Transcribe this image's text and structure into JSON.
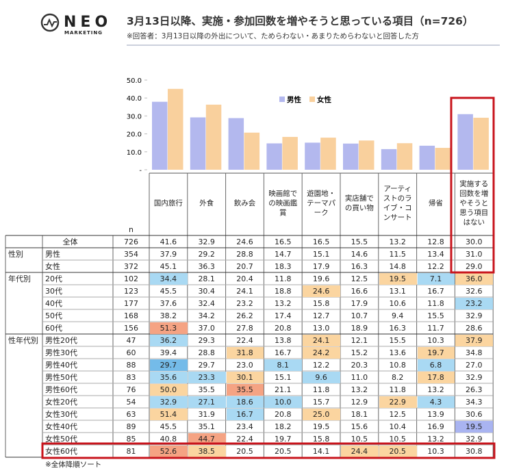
{
  "logo": {
    "name": "NEO",
    "sub": "MARKETING"
  },
  "header": {
    "title": "3月13日以降、実施・参加回数を増やそうと思っている項目（n=726）",
    "subtitle": "※回答者：3月13日以降の外出について、ためらわない・あまりためらわないと回答した方"
  },
  "chart_data": {
    "type": "bar",
    "categories": [
      "国内旅行",
      "外食",
      "飲み会",
      "映画館での映画鑑賞",
      "遊園地・テーマパーク",
      "実店舗での買い物",
      "アーティストのライブ・コンサート",
      "帰省",
      "実施する回数を増やそうと思う項目はない"
    ],
    "series": [
      {
        "name": "男性",
        "color": "#b3b8ee",
        "values": [
          37.9,
          29.2,
          28.8,
          14.7,
          15.1,
          14.6,
          11.5,
          13.4,
          31.0
        ]
      },
      {
        "name": "女性",
        "color": "#f9d09d",
        "values": [
          45.1,
          36.3,
          20.7,
          18.3,
          17.9,
          16.3,
          14.8,
          12.2,
          29.0
        ]
      }
    ],
    "ylim": [
      0,
      50
    ],
    "yticks": [
      {
        "value": 0,
        "label": "-"
      },
      {
        "value": 10,
        "label": "10.0"
      },
      {
        "value": 20,
        "label": "20.0"
      },
      {
        "value": 30,
        "label": "30.0"
      },
      {
        "value": 40,
        "label": "40.0"
      },
      {
        "value": 50,
        "label": "50.0"
      }
    ],
    "legend": "upper right"
  },
  "table": {
    "n_label": "n",
    "shades": {
      "low": "#a9d9f3",
      "deep": "#74bbe9",
      "violet": "#a9b4f1",
      "high": "#fbd5a0",
      "top": "#f5a383"
    },
    "rows": [
      {
        "label": "全体",
        "n": 726,
        "values": [
          "41.6",
          "32.9",
          "24.6",
          "16.5",
          "16.5",
          "15.5",
          "13.2",
          "12.8",
          "30.0"
        ]
      },
      {
        "group": "性別",
        "label": "男性",
        "n": 354,
        "values": [
          "37.9",
          "29.2",
          "28.8",
          "14.7",
          "15.1",
          "14.6",
          "11.5",
          "13.4",
          "31.0"
        ]
      },
      {
        "label": "女性",
        "n": 372,
        "values": [
          "45.1",
          "36.3",
          "20.7",
          "18.3",
          "17.9",
          "16.3",
          "14.8",
          "12.2",
          "29.0"
        ]
      },
      {
        "group": "年代別",
        "label": "20代",
        "n": 102,
        "values": [
          "34.4",
          "28.1",
          "20.4",
          "11.8",
          "19.6",
          "12.5",
          "19.5",
          "7.1",
          "36.0"
        ],
        "shade": [
          "low",
          null,
          null,
          null,
          null,
          null,
          "high",
          "low",
          "high"
        ]
      },
      {
        "label": "30代",
        "n": 123,
        "values": [
          "45.5",
          "30.4",
          "24.1",
          "18.8",
          "24.6",
          "16.6",
          "13.1",
          "16.7",
          "32.6"
        ],
        "shade": [
          null,
          null,
          null,
          null,
          "high",
          null,
          null,
          null,
          null
        ]
      },
      {
        "label": "40代",
        "n": 177,
        "values": [
          "37.6",
          "32.4",
          "23.2",
          "13.2",
          "15.8",
          "17.9",
          "10.6",
          "11.8",
          "23.2"
        ],
        "shade": [
          null,
          null,
          null,
          null,
          null,
          null,
          null,
          null,
          "low"
        ]
      },
      {
        "label": "50代",
        "n": 168,
        "values": [
          "38.2",
          "34.2",
          "26.2",
          "17.4",
          "12.7",
          "10.7",
          "9.4",
          "15.5",
          "32.9"
        ]
      },
      {
        "label": "60代",
        "n": 156,
        "values": [
          "51.3",
          "37.0",
          "27.8",
          "20.8",
          "13.0",
          "18.9",
          "16.3",
          "11.7",
          "28.6"
        ],
        "shade": [
          "top",
          null,
          null,
          null,
          null,
          null,
          null,
          null,
          null
        ]
      },
      {
        "group": "性年代別",
        "label": "男性20代",
        "n": 47,
        "values": [
          "36.2",
          "29.3",
          "22.4",
          "13.8",
          "24.1",
          "12.1",
          "15.5",
          "10.3",
          "37.9"
        ],
        "shade": [
          "low",
          null,
          null,
          null,
          "high",
          null,
          null,
          null,
          "high"
        ]
      },
      {
        "label": "男性30代",
        "n": 60,
        "values": [
          "39.4",
          "28.8",
          "31.8",
          "16.7",
          "24.2",
          "15.2",
          "13.6",
          "19.7",
          "34.8"
        ],
        "shade": [
          null,
          null,
          "high",
          null,
          "high",
          null,
          null,
          "high",
          null
        ]
      },
      {
        "label": "男性40代",
        "n": 88,
        "values": [
          "29.7",
          "29.7",
          "23.0",
          "8.1",
          "12.2",
          "20.3",
          "10.8",
          "6.8",
          "27.0"
        ],
        "shade": [
          "deep",
          null,
          null,
          "low",
          null,
          null,
          null,
          "low",
          null
        ]
      },
      {
        "label": "男性50代",
        "n": 83,
        "values": [
          "35.6",
          "23.3",
          "30.1",
          "15.1",
          "9.6",
          "11.0",
          "8.2",
          "17.8",
          "32.9"
        ],
        "shade": [
          "low",
          "low",
          "high",
          null,
          "low",
          null,
          null,
          "high",
          null
        ]
      },
      {
        "label": "男性60代",
        "n": 76,
        "values": [
          "50.0",
          "35.5",
          "35.5",
          "21.1",
          "11.8",
          "13.2",
          "11.8",
          "13.2",
          "26.3"
        ],
        "shade": [
          "high",
          null,
          "top",
          null,
          null,
          null,
          null,
          null,
          null
        ]
      },
      {
        "label": "女性20代",
        "n": 54,
        "values": [
          "32.9",
          "27.1",
          "18.6",
          "10.0",
          "15.7",
          "12.9",
          "22.9",
          "4.3",
          "34.3"
        ],
        "shade": [
          "low",
          "low",
          "low",
          "low",
          null,
          null,
          "high",
          "low",
          null
        ]
      },
      {
        "label": "女性30代",
        "n": 63,
        "values": [
          "51.4",
          "31.9",
          "16.7",
          "20.8",
          "25.0",
          "18.1",
          "12.5",
          "13.9",
          "30.6"
        ],
        "shade": [
          "high",
          null,
          "low",
          null,
          "high",
          null,
          null,
          null,
          null
        ]
      },
      {
        "label": "女性40代",
        "n": 89,
        "values": [
          "45.5",
          "35.1",
          "23.4",
          "18.2",
          "19.5",
          "15.6",
          "10.4",
          "16.9",
          "19.5"
        ],
        "shade": [
          null,
          null,
          null,
          null,
          null,
          null,
          null,
          null,
          "violet"
        ]
      },
      {
        "label": "女性50代",
        "n": 85,
        "values": [
          "40.8",
          "44.7",
          "22.4",
          "19.7",
          "15.8",
          "10.5",
          "10.5",
          "13.2",
          "32.9"
        ],
        "shade": [
          null,
          "top",
          null,
          null,
          null,
          null,
          null,
          null,
          null
        ]
      },
      {
        "label": "女性60代",
        "n": 81,
        "values": [
          "52.6",
          "38.5",
          "20.5",
          "20.5",
          "14.1",
          "24.4",
          "20.5",
          "10.3",
          "30.8"
        ],
        "shade": [
          "top",
          "high",
          null,
          null,
          null,
          "high",
          "high",
          null,
          null
        ]
      }
    ]
  },
  "footnote": "※全体降順ソート"
}
